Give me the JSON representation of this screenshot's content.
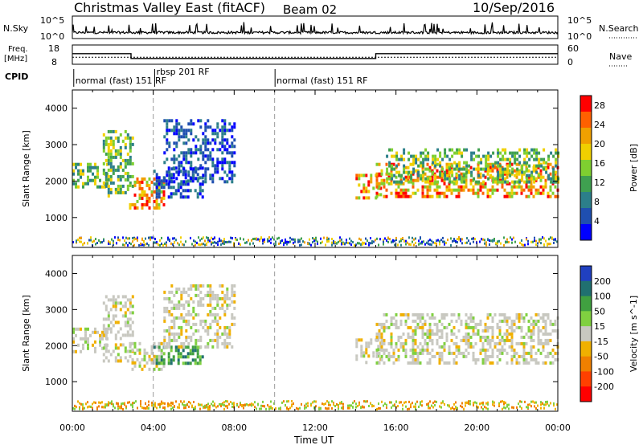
{
  "header": {
    "title": "Christmas Valley East (fitACF)",
    "beam": "Beam 02",
    "date": "10/Sep/2016"
  },
  "top_panels": {
    "nsky_label": "N.Sky",
    "nsearch_label": "N.Search",
    "nsky_ticks": [
      "10^5",
      "10^0"
    ],
    "nsearch_ticks": [
      "10^5",
      "10^0"
    ],
    "freq_label": "Freq.",
    "freq_unit": "[MHz]",
    "freq_ticks": [
      "18",
      "8"
    ],
    "nave_label": "Nave",
    "nave_ticks": [
      "60",
      "0"
    ],
    "cpid_label": "CPID",
    "cpid_segments": [
      {
        "text": "normal (fast) 151 RF",
        "start_hour": 0.15
      },
      {
        "text": "rbsp 201 RF",
        "start_hour": 4.15
      },
      {
        "text": "normal (fast) 151 RF",
        "start_hour": 10.1
      }
    ],
    "freq_steps": [
      {
        "from": 0,
        "to": 2.9,
        "mhz": 13.5
      },
      {
        "from": 2.9,
        "to": 15.0,
        "mhz": 11.0
      },
      {
        "from": 15.0,
        "to": 24,
        "mhz": 13.5
      }
    ],
    "nave_level": 22
  },
  "colors": {
    "power": [
      "#0000ff",
      "#1f4fb0",
      "#2c7f8a",
      "#3fa050",
      "#7fcf30",
      "#f0d000",
      "#f0a000",
      "#ff6000",
      "#ff0000"
    ],
    "velocity": [
      "#2040c0",
      "#207070",
      "#40a040",
      "#80d040",
      "#c8c8c0",
      "#f0b000",
      "#f08000",
      "#ff4000",
      "#ff0000"
    ],
    "dashline": "#999999"
  },
  "chart_data": [
    {
      "type": "heatmap",
      "title": "Power",
      "xlabel": "",
      "ylabel": "Slant Range [km]",
      "xlim": [
        0,
        24
      ],
      "ylim": [
        180,
        4500
      ],
      "xticks": [
        "00:00",
        "04:00",
        "08:00",
        "12:00",
        "16:00",
        "20:00",
        "00:00"
      ],
      "yticks": [
        1000,
        2000,
        3000,
        4000
      ],
      "colorbar_label": "Power [dB]",
      "colorbar_ticks": [
        4,
        8,
        12,
        16,
        20,
        24,
        28
      ],
      "colorbar_range": [
        0,
        30
      ],
      "regions": [
        {
          "t0": 0.0,
          "t1": 1.7,
          "r0": 1800,
          "r1": 2500,
          "level": "mid"
        },
        {
          "t0": 1.5,
          "t1": 3.0,
          "r0": 1600,
          "r1": 3400,
          "level": "mid"
        },
        {
          "t0": 2.8,
          "t1": 4.5,
          "r0": 1300,
          "r1": 2100,
          "level": "high"
        },
        {
          "t0": 4.0,
          "t1": 6.5,
          "r0": 1550,
          "r1": 2400,
          "level": "low"
        },
        {
          "t0": 4.5,
          "t1": 8.0,
          "r0": 2000,
          "r1": 3700,
          "level": "low"
        },
        {
          "t0": 14.0,
          "t1": 15.2,
          "r0": 1500,
          "r1": 2200,
          "level": "high"
        },
        {
          "t0": 15.0,
          "t1": 24.0,
          "r0": 1550,
          "r1": 2500,
          "level": "high"
        },
        {
          "t0": 15.5,
          "t1": 24.0,
          "r0": 2000,
          "r1": 2900,
          "level": "mid"
        }
      ]
    },
    {
      "type": "heatmap",
      "title": "Velocity",
      "xlabel": "Time UT",
      "ylabel": "Slant Range [km]",
      "xlim": [
        0,
        24
      ],
      "ylim": [
        180,
        4500
      ],
      "xticks": [
        "00:00",
        "04:00",
        "08:00",
        "12:00",
        "16:00",
        "20:00",
        "00:00"
      ],
      "yticks": [
        1000,
        2000,
        3000,
        4000
      ],
      "colorbar_label": "Velocity [m s^-1]",
      "colorbar_ticks": [
        200,
        100,
        50,
        15,
        -15,
        -50,
        -100,
        -200
      ],
      "colorbar_range": [
        -250,
        250
      ],
      "regions": [
        {
          "t0": 0.0,
          "t1": 1.7,
          "r0": 1800,
          "r1": 2500,
          "level": "grey"
        },
        {
          "t0": 1.5,
          "t1": 3.0,
          "r0": 1600,
          "r1": 3400,
          "level": "grey"
        },
        {
          "t0": 2.8,
          "t1": 4.5,
          "r0": 1300,
          "r1": 2100,
          "level": "grey"
        },
        {
          "t0": 4.0,
          "t1": 6.5,
          "r0": 1550,
          "r1": 2000,
          "level": "green"
        },
        {
          "t0": 4.5,
          "t1": 8.0,
          "r0": 2000,
          "r1": 3700,
          "level": "grey"
        },
        {
          "t0": 14.0,
          "t1": 15.2,
          "r0": 1500,
          "r1": 2200,
          "level": "grey"
        },
        {
          "t0": 15.0,
          "t1": 24.0,
          "r0": 1550,
          "r1": 2900,
          "level": "grey"
        }
      ]
    }
  ]
}
